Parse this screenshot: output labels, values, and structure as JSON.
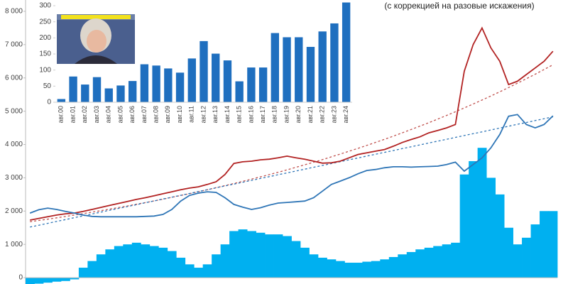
{
  "chart_data": [
    {
      "type": "combo",
      "subtitle": "(с коррекцией на разовые искажения)",
      "categories": [
        null,
        null,
        null,
        null,
        null,
        null,
        null,
        null,
        null,
        null,
        null,
        null,
        null,
        null,
        null,
        null,
        null,
        null,
        null,
        null,
        null,
        null,
        null,
        null,
        null,
        null,
        null,
        null,
        null,
        null,
        null,
        null,
        null,
        null,
        null,
        null,
        null,
        null,
        null,
        null,
        null,
        null,
        null,
        null,
        null,
        null,
        null,
        null,
        null,
        null,
        null,
        null,
        null,
        null,
        null,
        null,
        null,
        null,
        null,
        null
      ],
      "ylim": [
        -190,
        8340
      ],
      "yticks": [
        0,
        {
          "value": 1000,
          "label": "1 000"
        },
        {
          "value": 2000,
          "label": "2 000"
        },
        {
          "value": 3000,
          "label": "3 000"
        },
        {
          "value": 4000,
          "label": "4 000"
        },
        {
          "value": 5000,
          "label": "5 000"
        },
        {
          "value": 6000,
          "label": "6 000"
        },
        {
          "value": 7000,
          "label": "7 000"
        },
        {
          "value": 8000,
          "label": "8 000"
        }
      ],
      "series": [
        {
          "type": "bar",
          "color": "#00b0f0",
          "values": [
            -200,
            -180,
            -150,
            -120,
            -100,
            -50,
            300,
            500,
            700,
            850,
            950,
            1000,
            1050,
            1000,
            950,
            900,
            800,
            600,
            400,
            300,
            400,
            700,
            1000,
            1400,
            1450,
            1400,
            1350,
            1300,
            1300,
            1250,
            1100,
            900,
            700,
            600,
            550,
            500,
            450,
            450,
            480,
            500,
            550,
            620,
            700,
            770,
            850,
            900,
            950,
            1000,
            1050,
            3100,
            3500,
            3900,
            3000,
            2500,
            1500,
            1000,
            1200,
            1600,
            2000,
            2000
          ]
        },
        {
          "type": "line",
          "dashed": true,
          "color": "#c0504d",
          "values": [
            1680,
            1719,
            1758,
            1798,
            1839,
            1881,
            1924,
            1968,
            2013,
            2059,
            2106,
            2154,
            2204,
            2254,
            2306,
            2359,
            2413,
            2468,
            2525,
            2583,
            2642,
            2703,
            2765,
            2828,
            2893,
            2959,
            3027,
            3096,
            3167,
            3240,
            3314,
            3390,
            3468,
            3547,
            3629,
            3712,
            3797,
            3884,
            3973,
            4064,
            4157,
            4253,
            4350,
            4450,
            4552,
            4656,
            4763,
            4872,
            4984,
            5098,
            5215,
            5335,
            5457,
            5582,
            5710,
            5841,
            5975,
            6112,
            6252,
            6396
          ]
        },
        {
          "type": "line",
          "dashed": true,
          "color": "#2e75b6",
          "values": [
            1520,
            1576,
            1632,
            1688,
            1744,
            1801,
            1857,
            1913,
            1969,
            2025,
            2081,
            2137,
            2193,
            2249,
            2305,
            2362,
            2418,
            2474,
            2530,
            2586,
            2642,
            2698,
            2754,
            2810,
            2866,
            2923,
            2979,
            3035,
            3091,
            3147,
            3203,
            3259,
            3315,
            3371,
            3427,
            3484,
            3540,
            3596,
            3652,
            3708,
            3764,
            3820,
            3876,
            3932,
            3988,
            4045,
            4101,
            4157,
            4213,
            4269,
            4325,
            4381,
            4437,
            4493,
            4549,
            4606,
            4662,
            4718,
            4774,
            4830
          ]
        },
        {
          "type": "line",
          "color": "#b22222",
          "values": [
            1730,
            1780,
            1830,
            1880,
            1920,
            1940,
            1990,
            2050,
            2110,
            2170,
            2230,
            2290,
            2350,
            2400,
            2460,
            2520,
            2580,
            2640,
            2690,
            2730,
            2800,
            2880,
            3100,
            3430,
            3480,
            3500,
            3540,
            3560,
            3600,
            3650,
            3600,
            3560,
            3500,
            3440,
            3450,
            3500,
            3600,
            3700,
            3750,
            3800,
            3850,
            3950,
            4060,
            4150,
            4230,
            4350,
            4420,
            4500,
            4600,
            6200,
            7000,
            7500,
            6900,
            6500,
            5800,
            5900,
            6100,
            6300,
            6500,
            6800
          ]
        },
        {
          "type": "line",
          "color": "#2e75b6",
          "values": [
            1940,
            2040,
            2090,
            2050,
            1990,
            1940,
            1880,
            1840,
            1830,
            1830,
            1830,
            1830,
            1830,
            1840,
            1850,
            1900,
            2050,
            2300,
            2470,
            2540,
            2580,
            2560,
            2400,
            2200,
            2120,
            2050,
            2100,
            2180,
            2240,
            2260,
            2280,
            2300,
            2400,
            2600,
            2800,
            2900,
            3000,
            3120,
            3220,
            3250,
            3300,
            3330,
            3330,
            3320,
            3330,
            3340,
            3350,
            3400,
            3470,
            3200,
            3400,
            3600,
            3900,
            4300,
            4850,
            4900,
            4600,
            4500,
            4600,
            4860
          ]
        }
      ]
    },
    {
      "type": "bar",
      "categories": [
        "авг.00",
        "авг.01",
        "авг.02",
        "авг.03",
        "авг.04",
        "авг.05",
        "авг.06",
        "авг.07",
        "авг.08",
        "авг.09",
        "авг.10",
        "авг.11",
        "авг.12",
        "авг.13",
        "авг.14",
        "авг.15",
        "авг.16",
        "авг.17",
        "авг.18",
        "авг.19",
        "авг.20",
        "авг.21",
        "авг.22",
        "авг.23",
        "авг.24"
      ],
      "values": [
        10,
        80,
        55,
        78,
        43,
        52,
        66,
        118,
        114,
        105,
        92,
        136,
        190,
        151,
        130,
        65,
        108,
        108,
        215,
        202,
        202,
        172,
        220,
        245,
        310
      ],
      "color": "#1f6fbf",
      "ylim": [
        0,
        310
      ],
      "yticks": [
        0,
        50,
        100,
        150,
        200,
        250,
        300
      ]
    }
  ]
}
